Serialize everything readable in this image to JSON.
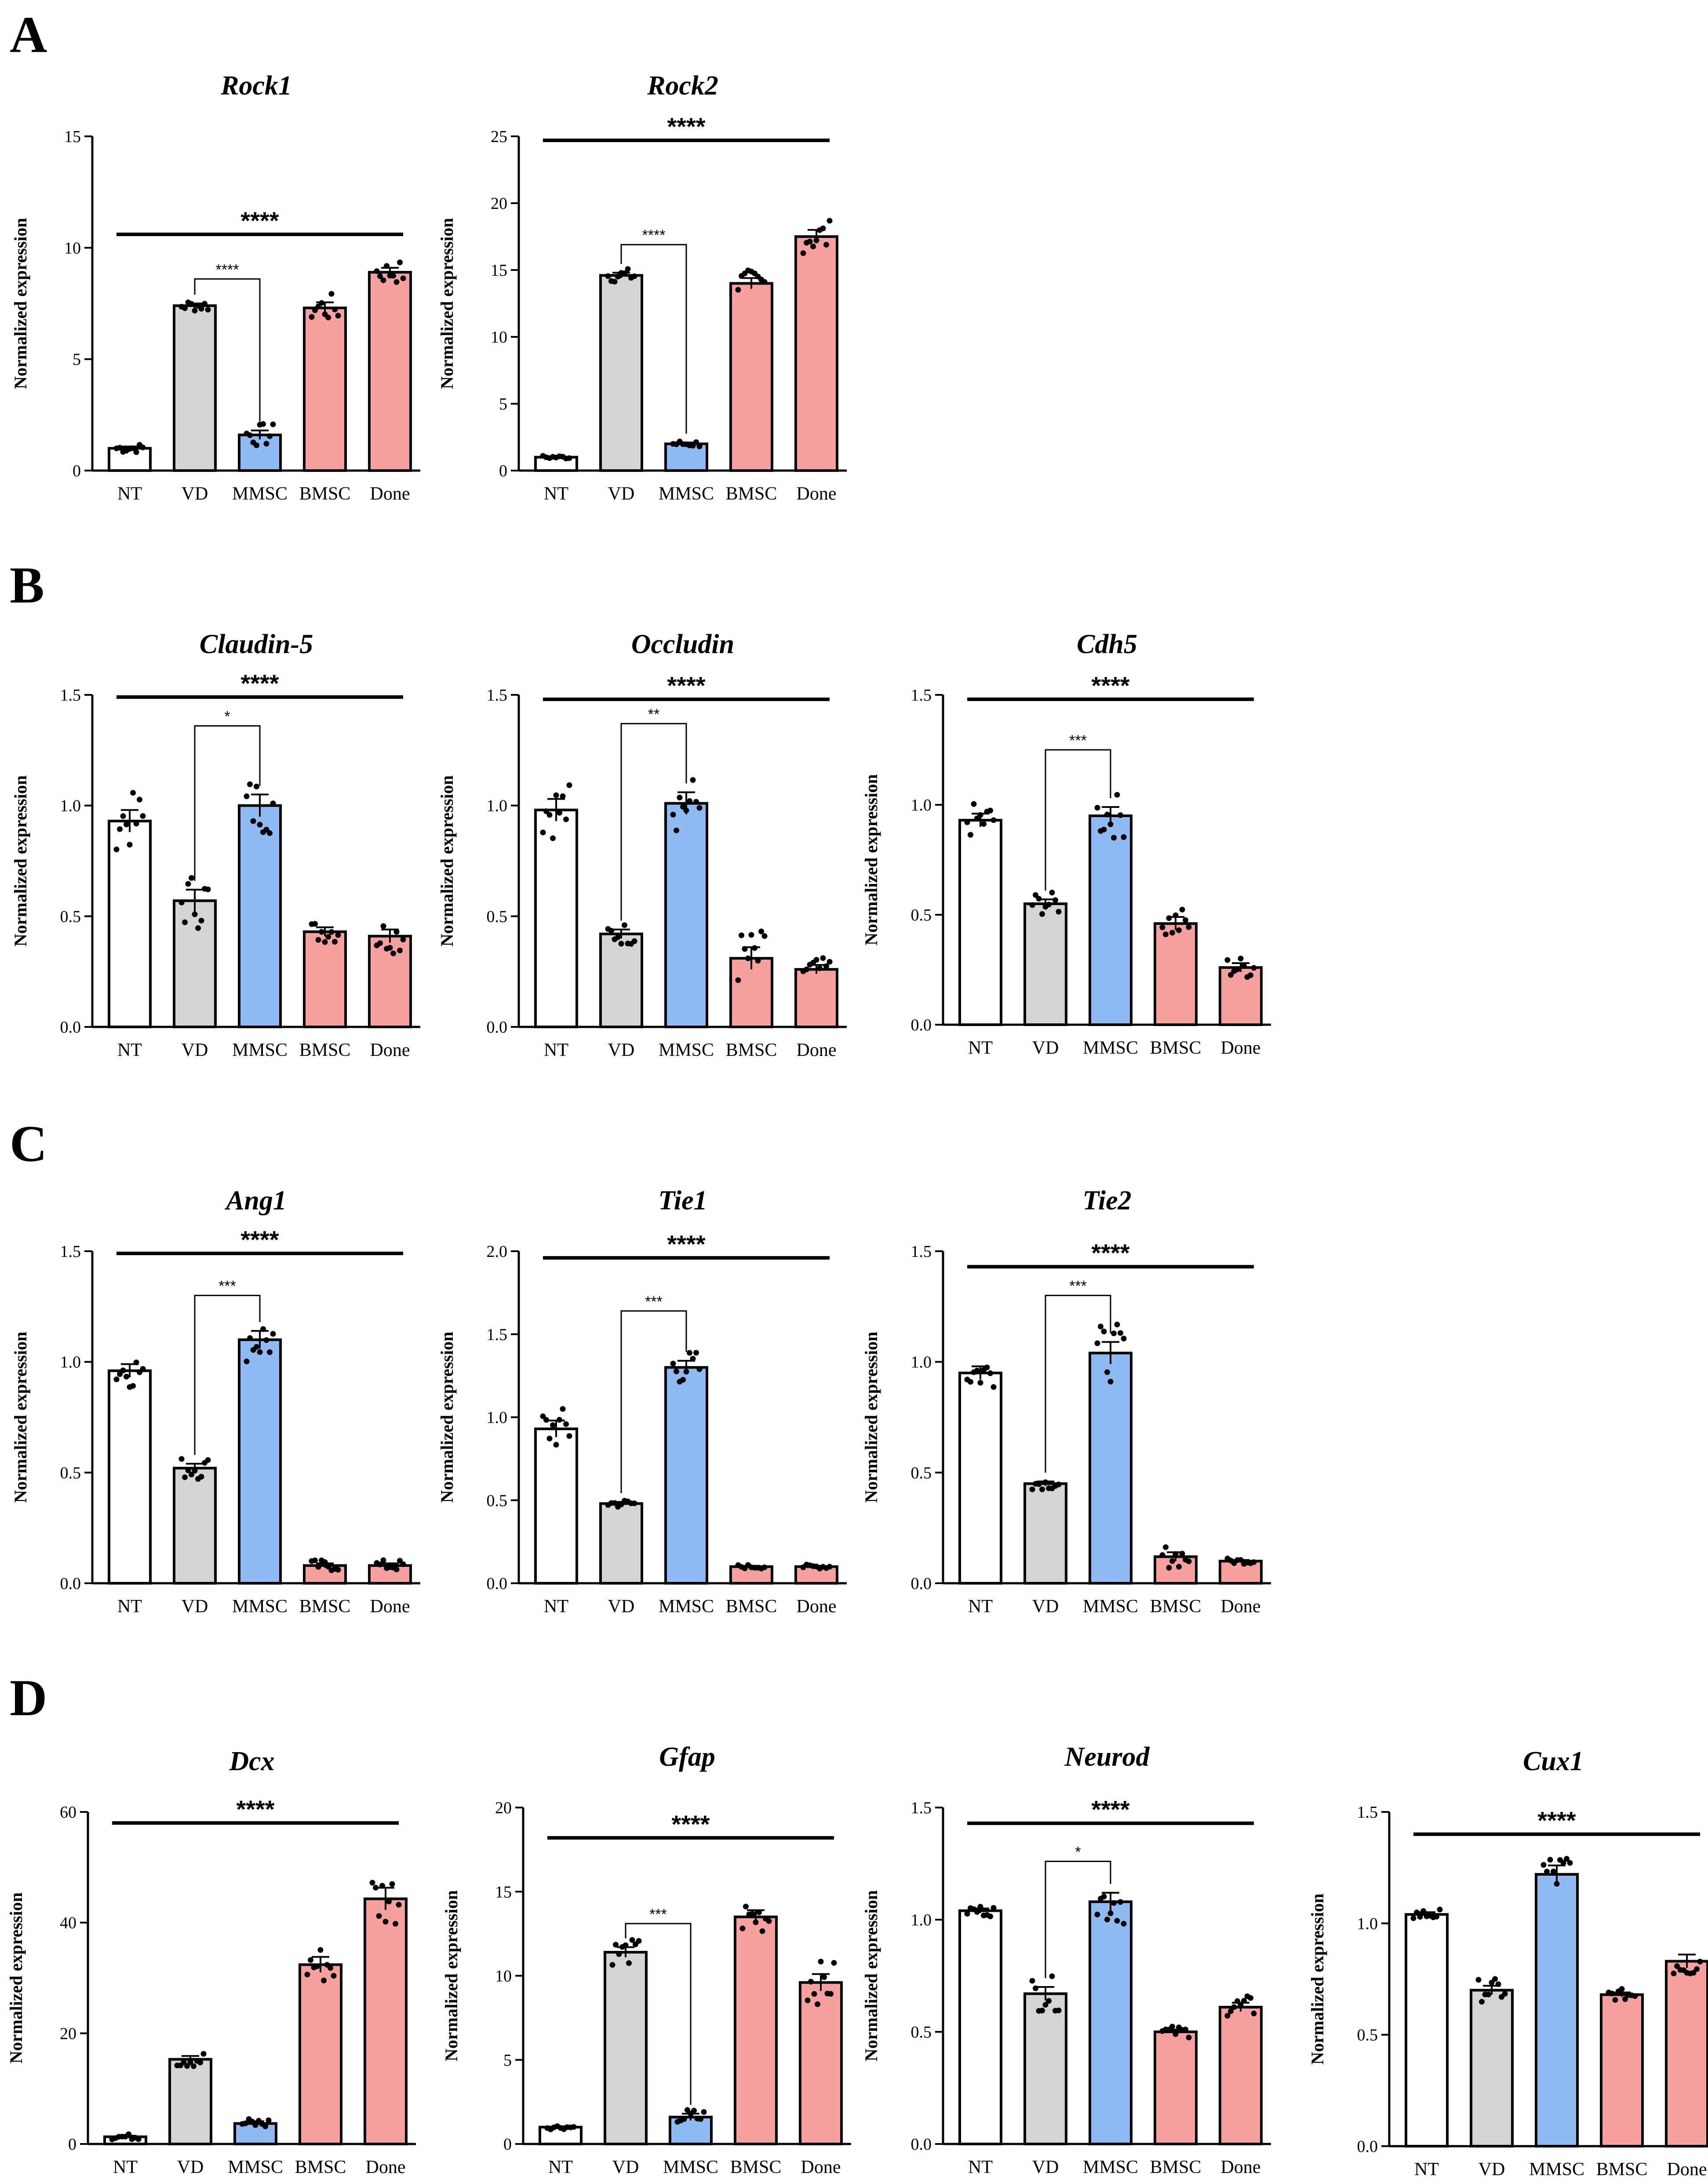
{
  "panel_letters": [
    "A",
    "B",
    "C",
    "D"
  ],
  "colors": {
    "NT": "#ffffff",
    "VD": "#d4d4d4",
    "MMSC": "#8fbbf2",
    "BMSC": "#f6a0a0",
    "Done": "#f6a0a0",
    "stroke": "#000000"
  },
  "chart_data": [
    {
      "type": "bar",
      "panel": "A",
      "title": "Rock1",
      "ylabel": "Normalized expression",
      "categories": [
        "NT",
        "VD",
        "MMSC",
        "BMSC",
        "Done"
      ],
      "values": [
        1.0,
        7.4,
        1.6,
        7.3,
        8.9
      ],
      "errors": [
        0.08,
        0.1,
        0.2,
        0.25,
        0.2
      ],
      "ylim": [
        0,
        15
      ],
      "yticks": [
        "0",
        "5",
        "10",
        "15"
      ],
      "ytick_values": [
        0,
        5,
        10,
        15
      ],
      "overall": {
        "label": "****",
        "y": 10.6
      },
      "pair": {
        "label": "****",
        "from": 1,
        "to": 2,
        "y": 8.6
      }
    },
    {
      "type": "bar",
      "panel": "A",
      "title": "Rock2",
      "ylabel": "Normalized expression",
      "categories": [
        "NT",
        "VD",
        "MMSC",
        "BMSC",
        "Done"
      ],
      "values": [
        1.0,
        14.6,
        2.0,
        14.0,
        17.5
      ],
      "errors": [
        0.05,
        0.2,
        0.1,
        0.4,
        0.5
      ],
      "ylim": [
        0,
        25
      ],
      "yticks": [
        "0",
        "5",
        "10",
        "15",
        "20",
        "25"
      ],
      "ytick_values": [
        0,
        5,
        10,
        15,
        20,
        25
      ],
      "overall": {
        "label": "****",
        "y": 24.7
      },
      "pair": {
        "label": "****",
        "from": 1,
        "to": 2,
        "y": 16.9
      }
    },
    {
      "type": "bar",
      "panel": "B",
      "title": "Claudin-5",
      "ylabel": "Normalized expression",
      "categories": [
        "NT",
        "VD",
        "MMSC",
        "BMSC",
        "Done"
      ],
      "values": [
        0.93,
        0.57,
        1.0,
        0.43,
        0.41
      ],
      "errors": [
        0.05,
        0.05,
        0.05,
        0.02,
        0.03
      ],
      "ylim": [
        0,
        1.5
      ],
      "yticks": [
        "0.0",
        "0.5",
        "1.0",
        "1.5"
      ],
      "ytick_values": [
        0,
        0.5,
        1.0,
        1.5
      ],
      "overall": {
        "label": "****",
        "y": 1.49
      },
      "pair": {
        "label": "*",
        "from": 1,
        "to": 2,
        "y": 1.36
      }
    },
    {
      "type": "bar",
      "panel": "B",
      "title": "Occludin",
      "ylabel": "Normalized expression",
      "categories": [
        "NT",
        "VD",
        "MMSC",
        "BMSC",
        "Done"
      ],
      "values": [
        0.98,
        0.42,
        1.01,
        0.31,
        0.26
      ],
      "errors": [
        0.05,
        0.02,
        0.05,
        0.05,
        0.02
      ],
      "ylim": [
        0,
        1.5
      ],
      "yticks": [
        "0.0",
        "0.5",
        "1.0",
        "1.5"
      ],
      "ytick_values": [
        0,
        0.5,
        1.0,
        1.5
      ],
      "overall": {
        "label": "****",
        "y": 1.48
      },
      "pair": {
        "label": "**",
        "from": 1,
        "to": 2,
        "y": 1.37
      }
    },
    {
      "type": "bar",
      "panel": "B",
      "title": "Cdh5",
      "ylabel": "Normalized expression",
      "categories": [
        "NT",
        "VD",
        "MMSC",
        "BMSC",
        "Done"
      ],
      "values": [
        0.93,
        0.55,
        0.95,
        0.46,
        0.26
      ],
      "errors": [
        0.03,
        0.02,
        0.04,
        0.03,
        0.02
      ],
      "ylim": [
        0,
        1.5
      ],
      "yticks": [
        "0.0",
        "0.5",
        "1.0",
        "1.5"
      ],
      "ytick_values": [
        0,
        0.5,
        1.0,
        1.5
      ],
      "overall": {
        "label": "****",
        "y": 1.48
      },
      "pair": {
        "label": "***",
        "from": 1,
        "to": 2,
        "y": 1.25
      }
    },
    {
      "type": "bar",
      "panel": "C",
      "title": "Ang1",
      "ylabel": "Normalized expression",
      "categories": [
        "NT",
        "VD",
        "MMSC",
        "BMSC",
        "Done"
      ],
      "values": [
        0.96,
        0.52,
        1.1,
        0.08,
        0.08
      ],
      "errors": [
        0.03,
        0.02,
        0.04,
        0.01,
        0.01
      ],
      "ylim": [
        0,
        1.5
      ],
      "yticks": [
        "0.0",
        "0.5",
        "1.0",
        "1.5"
      ],
      "ytick_values": [
        0,
        0.5,
        1.0,
        1.5
      ],
      "overall": {
        "label": "****",
        "y": 1.49
      },
      "pair": {
        "label": "***",
        "from": 1,
        "to": 2,
        "y": 1.3
      }
    },
    {
      "type": "bar",
      "panel": "C",
      "title": "Tie1",
      "ylabel": "Normalized expression",
      "categories": [
        "NT",
        "VD",
        "MMSC",
        "BMSC",
        "Done"
      ],
      "values": [
        0.93,
        0.48,
        1.3,
        0.1,
        0.1
      ],
      "errors": [
        0.05,
        0.01,
        0.04,
        0.005,
        0.005
      ],
      "ylim": [
        0,
        2.0
      ],
      "yticks": [
        "0.0",
        "0.5",
        "1.0",
        "1.5",
        "2.0"
      ],
      "ytick_values": [
        0,
        0.5,
        1.0,
        1.5,
        2.0
      ],
      "overall": {
        "label": "****",
        "y": 1.96
      },
      "pair": {
        "label": "***",
        "from": 1,
        "to": 2,
        "y": 1.64
      }
    },
    {
      "type": "bar",
      "panel": "C",
      "title": "Tie2",
      "ylabel": "Normalized expression",
      "categories": [
        "NT",
        "VD",
        "MMSC",
        "BMSC",
        "Done"
      ],
      "values": [
        0.95,
        0.45,
        1.04,
        0.12,
        0.1
      ],
      "errors": [
        0.03,
        0.01,
        0.05,
        0.02,
        0.005
      ],
      "ylim": [
        0,
        1.5
      ],
      "yticks": [
        "0.0",
        "0.5",
        "1.0",
        "1.5"
      ],
      "ytick_values": [
        0,
        0.5,
        1.0,
        1.5
      ],
      "overall": {
        "label": "****",
        "y": 1.43
      },
      "pair": {
        "label": "***",
        "from": 1,
        "to": 2,
        "y": 1.3
      }
    },
    {
      "type": "bar",
      "panel": "D",
      "title": "Dcx",
      "ylabel": "Normalized expression",
      "categories": [
        "NT",
        "VD",
        "MMSC",
        "BMSC",
        "Done"
      ],
      "values": [
        1.3,
        15.3,
        3.7,
        32.4,
        44.3
      ],
      "errors": [
        0.2,
        0.6,
        0.4,
        1.4,
        2.0
      ],
      "ylim": [
        0,
        60
      ],
      "yticks": [
        "0",
        "20",
        "40",
        "60"
      ],
      "ytick_values": [
        0,
        20,
        40,
        60
      ],
      "overall": {
        "label": "****",
        "y": 58
      },
      "pair": null
    },
    {
      "type": "bar",
      "panel": "D",
      "title": "Gfap",
      "ylabel": "Normalized expression",
      "categories": [
        "NT",
        "VD",
        "MMSC",
        "BMSC",
        "Done"
      ],
      "values": [
        1.0,
        11.4,
        1.6,
        13.5,
        9.6
      ],
      "errors": [
        0.05,
        0.3,
        0.2,
        0.4,
        0.5
      ],
      "ylim": [
        0,
        20
      ],
      "yticks": [
        "0",
        "5",
        "10",
        "15",
        "20"
      ],
      "ytick_values": [
        0,
        5,
        10,
        15,
        20
      ],
      "overall": {
        "label": "****",
        "y": 18.2
      },
      "pair": {
        "label": "***",
        "from": 1,
        "to": 2,
        "y": 13.1
      }
    },
    {
      "type": "bar",
      "panel": "D",
      "title": "Neurod",
      "ylabel": "Normalized expression",
      "categories": [
        "NT",
        "VD",
        "MMSC",
        "BMSC",
        "Done"
      ],
      "values": [
        1.04,
        0.67,
        1.08,
        0.5,
        0.61
      ],
      "errors": [
        0.01,
        0.03,
        0.04,
        0.01,
        0.02
      ],
      "ylim": [
        0,
        1.5
      ],
      "yticks": [
        "0.0",
        "0.5",
        "1.0",
        "1.5"
      ],
      "ytick_values": [
        0,
        0.5,
        1.0,
        1.5
      ],
      "overall": {
        "label": "****",
        "y": 1.43
      },
      "pair": {
        "label": "*",
        "from": 1,
        "to": 2,
        "y": 1.26
      }
    },
    {
      "type": "bar",
      "panel": "D",
      "title": "Cux1",
      "ylabel": "Normalized expression",
      "categories": [
        "NT",
        "VD",
        "MMSC",
        "BMSC",
        "Done"
      ],
      "values": [
        1.04,
        0.7,
        1.22,
        0.68,
        0.83
      ],
      "errors": [
        0.01,
        0.02,
        0.04,
        0.01,
        0.03
      ],
      "ylim": [
        0,
        1.5
      ],
      "yticks": [
        "0.0",
        "0.5",
        "1.0",
        "1.5"
      ],
      "ytick_values": [
        0,
        0.5,
        1.0,
        1.5
      ],
      "overall": {
        "label": "****",
        "y": 1.4
      },
      "pair": null
    }
  ]
}
